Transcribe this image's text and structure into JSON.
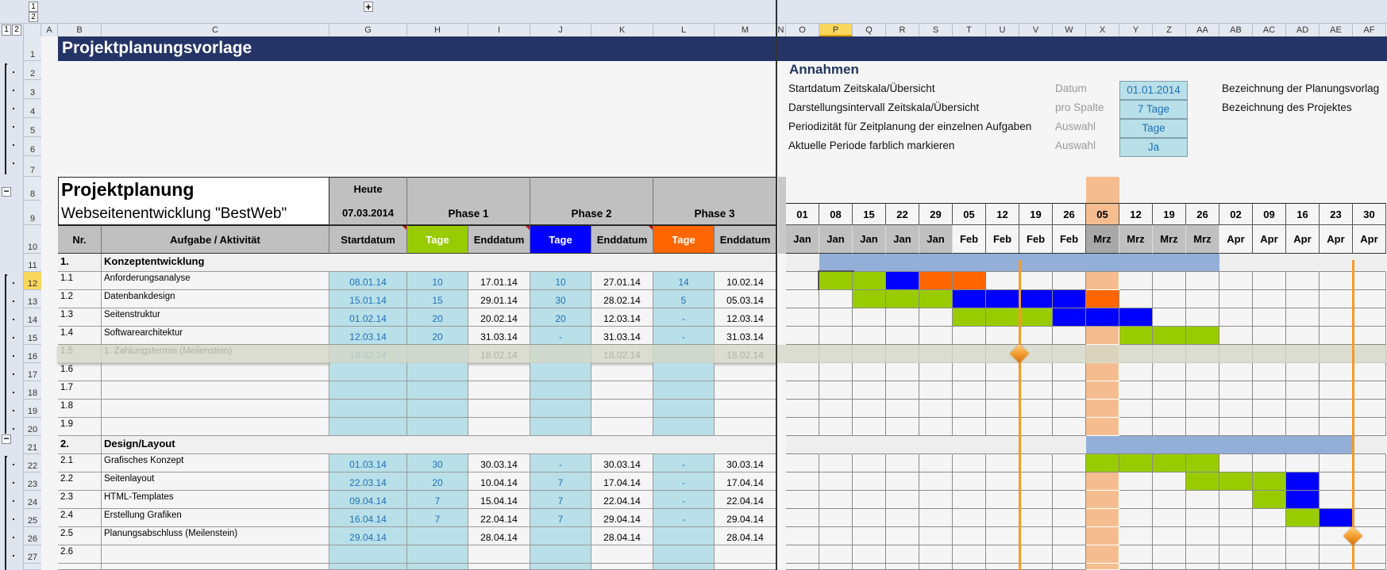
{
  "outline": {
    "levels": [
      "1",
      "2"
    ],
    "expand_symbol": "+",
    "collapse_symbol": "−"
  },
  "columns": [
    "A",
    "B",
    "C",
    "G",
    "H",
    "I",
    "J",
    "K",
    "L",
    "M",
    "N",
    "O",
    "P",
    "Q",
    "R",
    "S",
    "T",
    "U",
    "V",
    "W",
    "X",
    "Y",
    "Z",
    "AA",
    "AB",
    "AC",
    "AD",
    "AE",
    "AF"
  ],
  "selected_column": "P",
  "selected_row": "12",
  "title": "Projektplanungsvorlage",
  "assumptions": {
    "heading": "Annahmen",
    "items": [
      {
        "label": "Startdatum Zeitskala/Übersicht",
        "unit": "Datum",
        "value": "01.01.2014",
        "note": "Bezeichnung der Planungsvorlag"
      },
      {
        "label": "Darstellungsintervall Zeitskala/Übersicht",
        "unit": "pro Spalte",
        "value": "7 Tage",
        "note": "Bezeichnung des Projektes"
      },
      {
        "label": "Periodizität für Zeitplanung der einzelnen Aufgaben",
        "unit": "Auswahl",
        "value": "Tage",
        "note": ""
      },
      {
        "label": "Aktuelle Periode farblich markieren",
        "unit": "Auswahl",
        "value": "Ja",
        "note": ""
      }
    ]
  },
  "plan": {
    "title": "Projektplanung",
    "subtitle": "Webseitenentwicklung \"BestWeb\"",
    "today_label": "Heute",
    "today": "07.03.2014",
    "phases": [
      "Phase 1",
      "Phase 2",
      "Phase 3"
    ],
    "headers": {
      "nr": "Nr.",
      "task": "Aufgabe / Aktivität",
      "start": "Startdatum",
      "days": "Tage",
      "end": "Enddatum"
    }
  },
  "colors": {
    "title_bg": "#243466",
    "phase1": "#99cc00",
    "phase2": "#0000ff",
    "phase3": "#ff6600",
    "summary": "#93afd8",
    "current_period": "#f5bd8f",
    "milestone": "#f39a2a",
    "highlight_row": "#d5d8c8"
  },
  "timeline": {
    "days": [
      "01",
      "08",
      "15",
      "22",
      "29",
      "05",
      "12",
      "19",
      "26",
      "05",
      "12",
      "19",
      "26",
      "02",
      "09",
      "16",
      "23",
      "30"
    ],
    "months": [
      "Jan",
      "Jan",
      "Jan",
      "Jan",
      "Jan",
      "Feb",
      "Feb",
      "Feb",
      "Feb",
      "Mrz",
      "Mrz",
      "Mrz",
      "Mrz",
      "Apr",
      "Apr",
      "Apr",
      "Apr",
      "Apr"
    ],
    "current_week_index": 9
  },
  "rows": [
    {
      "num": "11",
      "type": "section",
      "nr": "1.",
      "task": "Konzeptentwicklung",
      "gantt": "-SSSSSSSSSSSS-----"
    },
    {
      "num": "12",
      "nr": "1.1",
      "task": "Anforderungsanalyse",
      "start": "08.01.14",
      "d1": "10",
      "e1": "17.01.14",
      "d2": "10",
      "e2": "27.01.14",
      "d3": "14",
      "e3": "10.02.14",
      "gantt": "-ggboo------------"
    },
    {
      "num": "13",
      "nr": "1.2",
      "task": "Datenbankdesign",
      "start": "15.01.14",
      "d1": "15",
      "e1": "29.01.14",
      "d2": "30",
      "e2": "28.02.14",
      "d3": "5",
      "e3": "05.03.14",
      "gantt": "--gggbbbbo--------"
    },
    {
      "num": "14",
      "nr": "1.3",
      "task": "Seitenstruktur",
      "start": "01.02.14",
      "d1": "20",
      "e1": "20.02.14",
      "d2": "20",
      "e2": "12.03.14",
      "d3": "-",
      "e3": "12.03.14",
      "gantt": "-----gggbbb-------"
    },
    {
      "num": "15",
      "nr": "1.4",
      "task": "Softwarearchitektur",
      "start": "12.03.14",
      "d1": "20",
      "e1": "31.03.14",
      "d2": "-",
      "e2": "31.03.14",
      "d3": "-",
      "e3": "31.03.14",
      "gantt": "----------ggg-----"
    },
    {
      "num": "16",
      "nr": "1.5",
      "task": "1. Zahlungstermin  (Meilenstein)",
      "start": "19.02.14",
      "d1": "-",
      "e1": "18.02.14",
      "d2": "-",
      "e2": "18.02.14",
      "d3": "-",
      "e3": "18.02.14",
      "gantt": "------------------",
      "milestone_week": 7,
      "highlight": true
    },
    {
      "num": "17",
      "nr": "1.6",
      "gantt": "------------------"
    },
    {
      "num": "18",
      "nr": "1.7",
      "gantt": "------------------"
    },
    {
      "num": "19",
      "nr": "1.8",
      "gantt": "------------------"
    },
    {
      "num": "20",
      "nr": "1.9",
      "gantt": "------------------"
    },
    {
      "num": "21",
      "type": "section",
      "nr": "2.",
      "task": "Design/Layout",
      "gantt": "---------SSSSSSSS-"
    },
    {
      "num": "22",
      "nr": "2.1",
      "task": "Grafisches Konzept",
      "start": "01.03.14",
      "d1": "30",
      "e1": "30.03.14",
      "d2": "-",
      "e2": "30.03.14",
      "d3": "-",
      "e3": "30.03.14",
      "gantt": "---------gggg-----"
    },
    {
      "num": "23",
      "nr": "2.2",
      "task": "Seitenlayout",
      "start": "22.03.14",
      "d1": "20",
      "e1": "10.04.14",
      "d2": "7",
      "e2": "17.04.14",
      "d3": "-",
      "e3": "17.04.14",
      "gantt": "------------gggb--"
    },
    {
      "num": "24",
      "nr": "2.3",
      "task": "HTML-Templates",
      "start": "09.04.14",
      "d1": "7",
      "e1": "15.04.14",
      "d2": "7",
      "e2": "22.04.14",
      "d3": "-",
      "e3": "22.04.14",
      "gantt": "--------------gb--"
    },
    {
      "num": "25",
      "nr": "2.4",
      "task": "Erstellung Grafiken",
      "start": "16.04.14",
      "d1": "7",
      "e1": "22.04.14",
      "d2": "7",
      "e2": "29.04.14",
      "d3": "-",
      "e3": "29.04.14",
      "gantt": "---------------gb-"
    },
    {
      "num": "26",
      "nr": "2.5",
      "task": "Planungsabschluss (Meilenstein)",
      "start": "29.04.14",
      "d1": "",
      "e1": "28.04.14",
      "d2": "",
      "e2": "28.04.14",
      "d3": "",
      "e3": "28.04.14",
      "gantt": "------------------",
      "milestone_week": 17
    },
    {
      "num": "27",
      "nr": "2.6",
      "gantt": "------------------"
    },
    {
      "num": "",
      "nr": "",
      "gantt": "------------------"
    }
  ]
}
